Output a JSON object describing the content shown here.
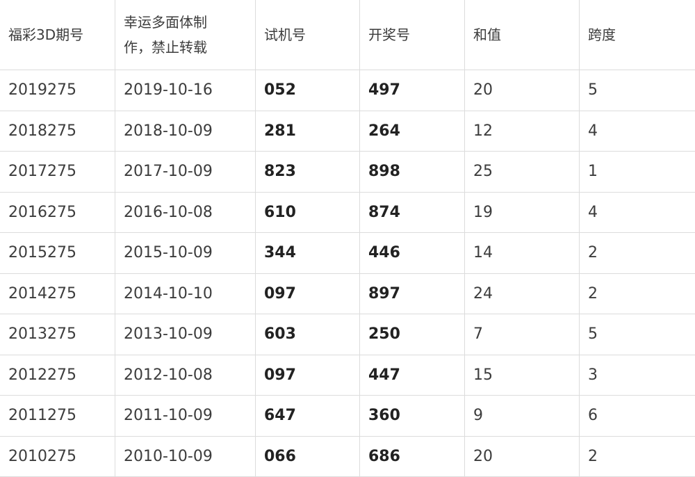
{
  "headers": [
    "福彩3D期号",
    "幸运多面体制作，禁止转载",
    "试机号",
    "开奖号",
    "和值",
    "跨度"
  ],
  "rows": [
    [
      "2019275",
      "2019-10-16",
      "052",
      "497",
      "20",
      "5"
    ],
    [
      "2018275",
      "2018-10-09",
      "281",
      "264",
      "12",
      "4"
    ],
    [
      "2017275",
      "2017-10-09",
      "823",
      "898",
      "25",
      "1"
    ],
    [
      "2016275",
      "2016-10-08",
      "610",
      "874",
      "19",
      "4"
    ],
    [
      "2015275",
      "2015-10-09",
      "344",
      "446",
      "14",
      "2"
    ],
    [
      "2014275",
      "2014-10-10",
      "097",
      "897",
      "24",
      "2"
    ],
    [
      "2013275",
      "2013-10-09",
      "603",
      "250",
      "7",
      "5"
    ],
    [
      "2012275",
      "2012-10-08",
      "097",
      "447",
      "15",
      "3"
    ],
    [
      "2011275",
      "2011-10-09",
      "647",
      "360",
      "9",
      "6"
    ],
    [
      "2010275",
      "2010-10-09",
      "066",
      "686",
      "20",
      "2"
    ]
  ]
}
